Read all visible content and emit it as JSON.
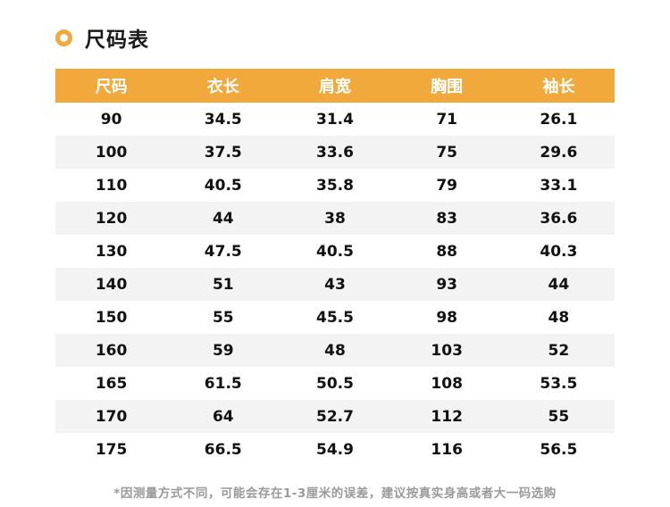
{
  "page": {
    "title": "尺码表",
    "footnote": "*因测量方式不同，可能会存在1-3厘米的误差，建议按真实身高或者大一码选购"
  },
  "colors": {
    "accent": "#F2A93C",
    "header_text": "#FFFFFF",
    "row_alt": "#F3F3F3",
    "body_text": "#111111",
    "footnote_text": "#9A9A9A"
  },
  "icons": {
    "title_bullet": "ring-icon"
  },
  "chart_data": {
    "type": "table",
    "title": "尺码表",
    "columns": [
      "尺码",
      "衣长",
      "肩宽",
      "胸围",
      "袖长"
    ],
    "rows": [
      [
        "90",
        "34.5",
        "31.4",
        "71",
        "26.1"
      ],
      [
        "100",
        "37.5",
        "33.6",
        "75",
        "29.6"
      ],
      [
        "110",
        "40.5",
        "35.8",
        "79",
        "33.1"
      ],
      [
        "120",
        "44",
        "38",
        "83",
        "36.6"
      ],
      [
        "130",
        "47.5",
        "40.5",
        "88",
        "40.3"
      ],
      [
        "140",
        "51",
        "43",
        "93",
        "44"
      ],
      [
        "150",
        "55",
        "45.5",
        "98",
        "48"
      ],
      [
        "160",
        "59",
        "48",
        "103",
        "52"
      ],
      [
        "165",
        "61.5",
        "50.5",
        "108",
        "53.5"
      ],
      [
        "170",
        "64",
        "52.7",
        "112",
        "55"
      ],
      [
        "175",
        "66.5",
        "54.9",
        "116",
        "56.5"
      ]
    ]
  }
}
